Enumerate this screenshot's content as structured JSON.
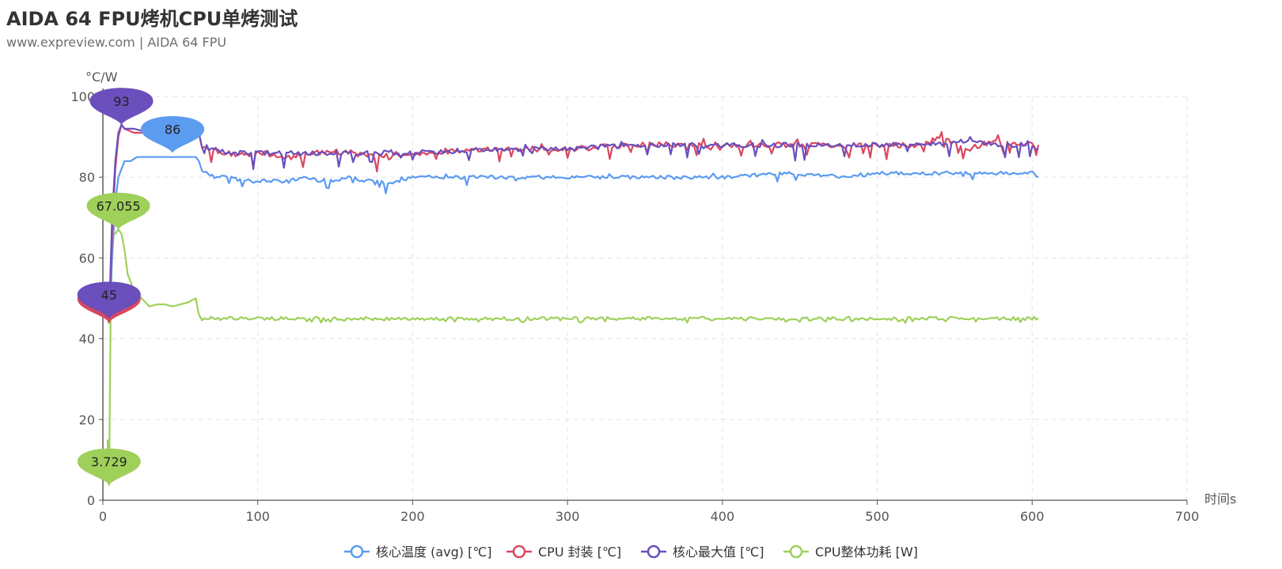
{
  "header": {
    "title": "AIDA 64 FPU烤机CPU单烤测试",
    "subtitle": "www.expreview.com  | AIDA 64 FPU"
  },
  "chart_data": {
    "type": "line",
    "title": "AIDA 64 FPU烤机CPU单烤测试",
    "subtitle": "www.expreview.com  | AIDA 64 FPU",
    "xlabel": "时间s",
    "ylabel": "°C/W",
    "xlim": [
      0,
      700
    ],
    "ylim": [
      0,
      100
    ],
    "x_ticks": [
      0,
      100,
      200,
      300,
      400,
      500,
      600,
      700
    ],
    "y_ticks": [
      0,
      20,
      40,
      60,
      80,
      100
    ],
    "grid": true,
    "legend_position": "bottom",
    "series": [
      {
        "name": "核心温度 (avg) [℃]",
        "color": "#5b9bf0",
        "x": [
          3,
          4,
          6,
          8,
          10,
          12,
          14,
          18,
          22,
          30,
          40,
          50,
          60,
          62,
          64,
          68,
          72,
          80,
          90,
          100,
          110,
          120,
          130,
          140,
          150,
          160,
          170,
          180,
          184,
          190,
          200,
          220,
          250,
          280,
          300,
          330,
          360,
          400,
          440,
          480,
          500,
          520,
          540,
          560,
          580,
          600,
          604
        ],
        "values": [
          45,
          44,
          60,
          74,
          80,
          82,
          84,
          84,
          85,
          85,
          85,
          85,
          85,
          84,
          82,
          81,
          80,
          80,
          79,
          79,
          79,
          79,
          80,
          79,
          79,
          80,
          79,
          79,
          78,
          79,
          80,
          80,
          80,
          80,
          80,
          80,
          80,
          80,
          81,
          80,
          81,
          81,
          81,
          81,
          81,
          81,
          80
        ],
        "markers": [
          {
            "label": "86",
            "x": 45,
            "y": 86
          },
          {
            "label": "45",
            "x": 4,
            "y": 45
          }
        ]
      },
      {
        "name": "CPU 封装 [℃]",
        "color": "#d9475e",
        "x": [
          3,
          4,
          6,
          8,
          10,
          12,
          14,
          20,
          30,
          40,
          50,
          60,
          62,
          64,
          70,
          80,
          90,
          100,
          120,
          140,
          160,
          180,
          200,
          250,
          300,
          350,
          400,
          450,
          500,
          530,
          540,
          560,
          575,
          590,
          600,
          604
        ],
        "values": [
          45,
          44,
          66,
          82,
          90,
          93,
          92,
          91,
          91,
          92,
          91,
          92,
          91,
          88,
          87,
          86,
          85,
          86,
          85,
          86,
          86,
          85,
          86,
          87,
          87,
          88,
          88,
          88,
          88,
          88,
          90,
          87,
          89,
          88,
          88,
          88
        ],
        "markers": [
          {
            "label": "93",
            "x": 12,
            "y": 93
          },
          {
            "label": "44",
            "x": 4,
            "y": 44
          }
        ]
      },
      {
        "name": "核心最大值 [℃]",
        "color": "#6a4fbd",
        "x": [
          3,
          4,
          6,
          8,
          10,
          12,
          14,
          20,
          30,
          40,
          50,
          60,
          62,
          64,
          70,
          80,
          90,
          100,
          120,
          140,
          160,
          180,
          200,
          250,
          300,
          350,
          400,
          450,
          500,
          530,
          560,
          575,
          590,
          600,
          604
        ],
        "values": [
          45,
          45,
          70,
          84,
          91,
          93,
          92,
          92,
          91,
          92,
          92,
          92,
          91,
          88,
          87,
          86,
          86,
          86,
          86,
          86,
          86,
          86,
          86,
          87,
          87,
          88,
          88,
          88,
          88,
          88,
          89,
          88,
          88,
          88,
          87
        ],
        "markers": [
          {
            "label": "93",
            "x": 12,
            "y": 93
          },
          {
            "label": "45",
            "x": 4,
            "y": 45
          }
        ]
      },
      {
        "name": "CPU整体功耗 [W]",
        "color": "#9fd05a",
        "x": [
          3,
          4,
          5,
          6,
          7,
          8,
          10,
          12,
          14,
          16,
          20,
          25,
          30,
          35,
          40,
          45,
          50,
          55,
          60,
          62,
          64,
          70,
          80,
          100,
          150,
          200,
          250,
          300,
          350,
          400,
          450,
          500,
          550,
          600,
          604
        ],
        "values": [
          15,
          3.729,
          45,
          63,
          66,
          66,
          67.055,
          66,
          62,
          56,
          52,
          50,
          48,
          48.5,
          48.5,
          48,
          48.5,
          49,
          50,
          46,
          45,
          45,
          45,
          45,
          45,
          45,
          45,
          45,
          45,
          45,
          45,
          45,
          45,
          45,
          45
        ],
        "markers": [
          {
            "label": "67.055",
            "x": 10,
            "y": 67.055
          },
          {
            "label": "3.729",
            "x": 4,
            "y": 3.729
          }
        ]
      }
    ]
  }
}
